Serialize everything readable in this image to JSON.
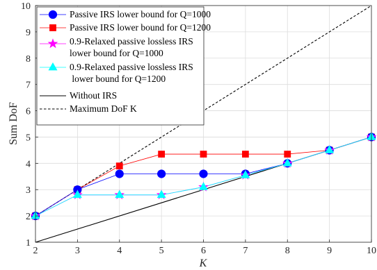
{
  "chart_data": {
    "type": "line",
    "xlabel": "K",
    "ylabel": "Sum DoF",
    "xlim": [
      2,
      10
    ],
    "ylim": [
      1,
      10
    ],
    "xticks": [
      "2",
      "3",
      "4",
      "5",
      "6",
      "7",
      "8",
      "9",
      "10"
    ],
    "yticks": [
      "1",
      "2",
      "3",
      "4",
      "5",
      "6",
      "7",
      "8",
      "9",
      "10"
    ],
    "grid": true,
    "legend_position": "top-left",
    "series": [
      {
        "name": "Passive IRS lower bound for Q=1000",
        "color": "#0000ff",
        "marker": "circle",
        "x": [
          2,
          3,
          4,
          5,
          6,
          7,
          8,
          9,
          10
        ],
        "y": [
          2,
          3,
          3.6,
          3.6,
          3.6,
          3.6,
          4,
          4.5,
          5
        ]
      },
      {
        "name": "Passive IRS lower bound for Q=1200",
        "color": "#ff0000",
        "marker": "square",
        "x": [
          2,
          3,
          4,
          5,
          6,
          7,
          8,
          9,
          10
        ],
        "y": [
          2,
          3,
          3.9,
          4.35,
          4.35,
          4.35,
          4.35,
          4.5,
          5
        ]
      },
      {
        "name": "0.9-Relaxed passive lossless IRS lower bound for Q=1000",
        "legend_lines": [
          "0.9-Relaxed passive lossless IRS",
          "lower bound for Q=1000"
        ],
        "color": "#ff00ff",
        "marker": "star",
        "x": [
          2,
          3,
          4,
          5,
          6,
          7,
          8,
          9,
          10
        ],
        "y": [
          2,
          2.8,
          2.8,
          2.8,
          3.1,
          3.55,
          4,
          4.5,
          5
        ]
      },
      {
        "name": "0.9-Relaxed passive lossless IRS lower bound for Q=1200",
        "legend_lines": [
          "0.9-Relaxed passive lossless IRS",
          " lower bound for Q=1200"
        ],
        "color": "#00ffff",
        "marker": "triangle",
        "x": [
          2,
          3,
          4,
          5,
          6,
          7,
          8,
          9,
          10
        ],
        "y": [
          2,
          2.8,
          2.8,
          2.8,
          3.1,
          3.55,
          4,
          4.5,
          5
        ]
      },
      {
        "name": "Without IRS",
        "color": "#000000",
        "marker": "none",
        "dash": "solid",
        "x": [
          2,
          10
        ],
        "y": [
          1,
          5
        ]
      },
      {
        "name": "Maximum DoF K",
        "color": "#000000",
        "marker": "none",
        "dash": "dashed",
        "x": [
          2,
          10
        ],
        "y": [
          2,
          10
        ]
      }
    ]
  }
}
